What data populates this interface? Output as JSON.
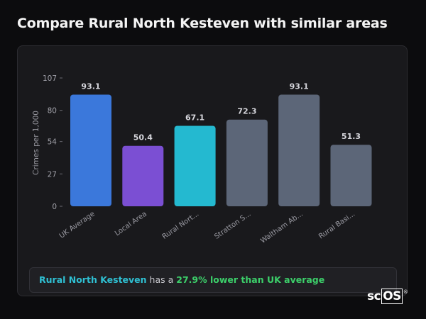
{
  "heading": "Compare Rural North Kesteven with similar areas",
  "chart_data": {
    "type": "bar",
    "ylabel": "Crimes per 1,000",
    "xlabel": "",
    "ylim": [
      0,
      107
    ],
    "yticks": [
      0,
      27,
      54,
      80,
      107
    ],
    "grid": false,
    "categories": [
      "UK Average",
      "Local Area",
      "Rural Nort...",
      "Stratton S...",
      "Waltham Ab...",
      "Rural Basi..."
    ],
    "values": [
      93.1,
      50.4,
      67.1,
      72.3,
      93.1,
      51.3
    ],
    "value_labels": [
      "93.1",
      "50.4",
      "67.1",
      "72.3",
      "93.1",
      "51.3"
    ],
    "colors": [
      "#3b78db",
      "#7b4fd3",
      "#24b9d0",
      "#5c6678",
      "#5c6678",
      "#5c6678"
    ]
  },
  "summary": {
    "area": "Rural North Kesteven",
    "middle": " has a ",
    "comparison": "27.9% lower than UK average"
  },
  "logo": {
    "prefix": "sc",
    "boxed": "OS",
    "mark": "®"
  }
}
